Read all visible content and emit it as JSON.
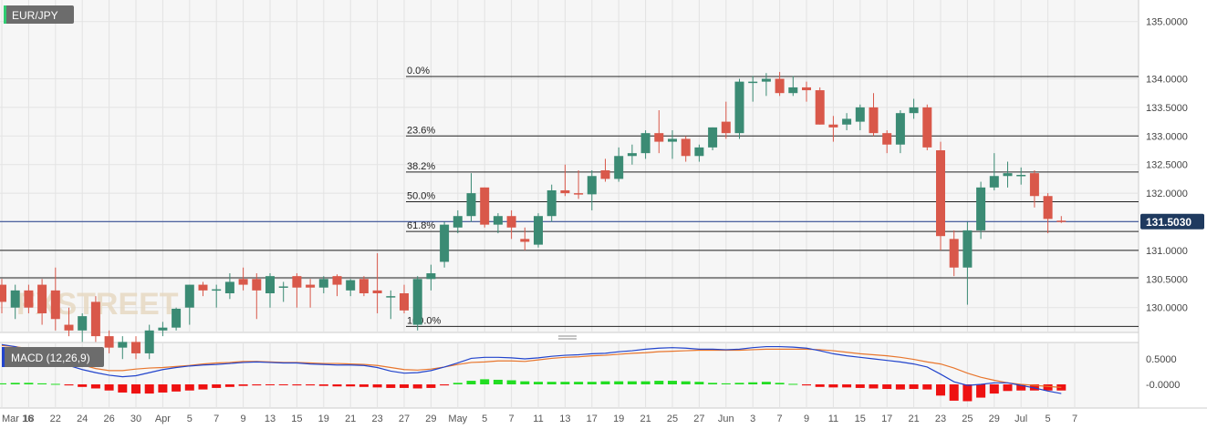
{
  "chart_data": {
    "type": "candlestick",
    "title": "EUR/JPY",
    "price_axis": {
      "ticks": [
        "130.0000",
        "130.5000",
        "131.0000",
        "131.5000",
        "132.0000",
        "132.5000",
        "133.0000",
        "133.5000",
        "134.0000",
        "135.0000"
      ],
      "tick_values": [
        130.0,
        130.5,
        131.0,
        131.5,
        132.0,
        132.5,
        133.0,
        133.5,
        134.0,
        135.0
      ],
      "range": [
        129.6,
        135.3
      ]
    },
    "current_price": {
      "label": "131.5030",
      "value": 131.503
    },
    "fibonacci": [
      {
        "label": "0.0%",
        "value": 134.04
      },
      {
        "label": "23.6%",
        "value": 133.0
      },
      {
        "label": "38.2%",
        "value": 132.37
      },
      {
        "label": "50.0%",
        "value": 131.85
      },
      {
        "label": "61.8%",
        "value": 131.33
      },
      {
        "label": "100.0%",
        "value": 129.67
      }
    ],
    "extra_levels": [
      131.0,
      130.52
    ],
    "date_axis": {
      "labels": [
        "Mar 16",
        "18",
        "22",
        "24",
        "26",
        "30",
        "Apr",
        "5",
        "7",
        "9",
        "13",
        "15",
        "19",
        "21",
        "23",
        "27",
        "29",
        "May",
        "5",
        "7",
        "11",
        "13",
        "17",
        "19",
        "21",
        "25",
        "27",
        "Jun",
        "3",
        "7",
        "9",
        "11",
        "15",
        "17",
        "21",
        "23",
        "25",
        "29",
        "Jul",
        "5",
        "7"
      ]
    },
    "candles": [
      {
        "o": 130.4,
        "h": 130.5,
        "l": 129.9,
        "c": 130.1
      },
      {
        "o": 130.0,
        "h": 130.4,
        "l": 129.8,
        "c": 130.3
      },
      {
        "o": 130.3,
        "h": 130.4,
        "l": 129.9,
        "c": 130.0
      },
      {
        "o": 130.4,
        "h": 130.5,
        "l": 129.7,
        "c": 129.9
      },
      {
        "o": 130.3,
        "h": 130.7,
        "l": 129.6,
        "c": 129.8
      },
      {
        "o": 129.7,
        "h": 130.0,
        "l": 129.5,
        "c": 129.6
      },
      {
        "o": 129.6,
        "h": 129.9,
        "l": 129.4,
        "c": 129.85
      },
      {
        "o": 130.1,
        "h": 130.2,
        "l": 129.4,
        "c": 129.5
      },
      {
        "o": 129.5,
        "h": 129.6,
        "l": 129.2,
        "c": 129.3
      },
      {
        "o": 129.3,
        "h": 129.5,
        "l": 129.1,
        "c": 129.4
      },
      {
        "o": 129.4,
        "h": 129.5,
        "l": 129.1,
        "c": 129.2
      },
      {
        "o": 129.2,
        "h": 129.7,
        "l": 129.1,
        "c": 129.6
      },
      {
        "o": 129.6,
        "h": 129.75,
        "l": 129.5,
        "c": 129.65
      },
      {
        "o": 129.65,
        "h": 130.0,
        "l": 129.6,
        "c": 129.98
      },
      {
        "o": 130.0,
        "h": 130.4,
        "l": 129.7,
        "c": 130.4
      },
      {
        "o": 130.4,
        "h": 130.45,
        "l": 130.2,
        "c": 130.3
      },
      {
        "o": 130.3,
        "h": 130.4,
        "l": 130.0,
        "c": 130.32
      },
      {
        "o": 130.25,
        "h": 130.6,
        "l": 130.15,
        "c": 130.45
      },
      {
        "o": 130.5,
        "h": 130.7,
        "l": 130.3,
        "c": 130.4
      },
      {
        "o": 130.5,
        "h": 130.6,
        "l": 129.8,
        "c": 130.3
      },
      {
        "o": 130.25,
        "h": 130.6,
        "l": 130.0,
        "c": 130.55
      },
      {
        "o": 130.35,
        "h": 130.45,
        "l": 130.1,
        "c": 130.37
      },
      {
        "o": 130.55,
        "h": 130.6,
        "l": 130.0,
        "c": 130.35
      },
      {
        "o": 130.4,
        "h": 130.5,
        "l": 130.0,
        "c": 130.35
      },
      {
        "o": 130.35,
        "h": 130.55,
        "l": 130.25,
        "c": 130.5
      },
      {
        "o": 130.55,
        "h": 130.58,
        "l": 130.2,
        "c": 130.4
      },
      {
        "o": 130.3,
        "h": 130.5,
        "l": 130.2,
        "c": 130.48
      },
      {
        "o": 130.5,
        "h": 130.55,
        "l": 130.2,
        "c": 130.25
      },
      {
        "o": 130.3,
        "h": 130.95,
        "l": 129.9,
        "c": 130.25
      },
      {
        "o": 130.2,
        "h": 130.3,
        "l": 129.8,
        "c": 130.2
      },
      {
        "o": 130.25,
        "h": 130.4,
        "l": 129.9,
        "c": 129.95
      },
      {
        "o": 129.7,
        "h": 130.55,
        "l": 129.6,
        "c": 130.5
      },
      {
        "o": 130.5,
        "h": 130.75,
        "l": 130.3,
        "c": 130.6
      },
      {
        "o": 130.8,
        "h": 131.5,
        "l": 130.7,
        "c": 131.45
      },
      {
        "o": 131.4,
        "h": 131.7,
        "l": 131.3,
        "c": 131.6
      },
      {
        "o": 131.6,
        "h": 132.35,
        "l": 131.5,
        "c": 132.0
      },
      {
        "o": 132.1,
        "h": 132.1,
        "l": 131.4,
        "c": 131.45
      },
      {
        "o": 131.45,
        "h": 131.65,
        "l": 131.3,
        "c": 131.6
      },
      {
        "o": 131.6,
        "h": 131.7,
        "l": 131.2,
        "c": 131.4
      },
      {
        "o": 131.2,
        "h": 131.4,
        "l": 131.0,
        "c": 131.15
      },
      {
        "o": 131.1,
        "h": 131.65,
        "l": 131.05,
        "c": 131.6
      },
      {
        "o": 131.6,
        "h": 132.15,
        "l": 131.5,
        "c": 132.05
      },
      {
        "o": 132.05,
        "h": 132.5,
        "l": 131.95,
        "c": 132.0
      },
      {
        "o": 132.0,
        "h": 132.4,
        "l": 131.9,
        "c": 131.98
      },
      {
        "o": 131.98,
        "h": 132.4,
        "l": 131.7,
        "c": 132.3
      },
      {
        "o": 132.4,
        "h": 132.6,
        "l": 132.2,
        "c": 132.25
      },
      {
        "o": 132.25,
        "h": 132.8,
        "l": 132.2,
        "c": 132.65
      },
      {
        "o": 132.65,
        "h": 132.85,
        "l": 132.5,
        "c": 132.7
      },
      {
        "o": 132.7,
        "h": 133.1,
        "l": 132.6,
        "c": 133.05
      },
      {
        "o": 133.05,
        "h": 133.45,
        "l": 132.7,
        "c": 132.9
      },
      {
        "o": 132.9,
        "h": 133.1,
        "l": 132.6,
        "c": 132.95
      },
      {
        "o": 132.95,
        "h": 133.0,
        "l": 132.55,
        "c": 132.65
      },
      {
        "o": 132.65,
        "h": 132.85,
        "l": 132.55,
        "c": 132.8
      },
      {
        "o": 132.8,
        "h": 133.15,
        "l": 132.75,
        "c": 133.15
      },
      {
        "o": 133.25,
        "h": 133.6,
        "l": 132.95,
        "c": 133.05
      },
      {
        "o": 133.05,
        "h": 134.0,
        "l": 132.95,
        "c": 133.95
      },
      {
        "o": 133.95,
        "h": 134.05,
        "l": 133.6,
        "c": 133.95
      },
      {
        "o": 133.95,
        "h": 134.1,
        "l": 133.7,
        "c": 134.0
      },
      {
        "o": 134.0,
        "h": 134.12,
        "l": 133.7,
        "c": 133.75
      },
      {
        "o": 133.75,
        "h": 134.05,
        "l": 133.7,
        "c": 133.85
      },
      {
        "o": 133.85,
        "h": 133.95,
        "l": 133.6,
        "c": 133.8
      },
      {
        "o": 133.8,
        "h": 133.85,
        "l": 133.2,
        "c": 133.2
      },
      {
        "o": 133.2,
        "h": 133.35,
        "l": 132.9,
        "c": 133.15
      },
      {
        "o": 133.2,
        "h": 133.4,
        "l": 133.1,
        "c": 133.3
      },
      {
        "o": 133.25,
        "h": 133.55,
        "l": 133.1,
        "c": 133.5
      },
      {
        "o": 133.5,
        "h": 133.75,
        "l": 133.0,
        "c": 133.05
      },
      {
        "o": 133.05,
        "h": 133.1,
        "l": 132.7,
        "c": 132.85
      },
      {
        "o": 132.85,
        "h": 133.45,
        "l": 132.7,
        "c": 133.4
      },
      {
        "o": 133.4,
        "h": 133.65,
        "l": 133.3,
        "c": 133.5
      },
      {
        "o": 133.5,
        "h": 133.55,
        "l": 132.75,
        "c": 132.8
      },
      {
        "o": 132.75,
        "h": 132.9,
        "l": 131.0,
        "c": 131.25
      },
      {
        "o": 131.2,
        "h": 131.35,
        "l": 130.55,
        "c": 130.7
      },
      {
        "o": 130.7,
        "h": 131.5,
        "l": 130.05,
        "c": 131.35
      },
      {
        "o": 131.35,
        "h": 132.2,
        "l": 131.2,
        "c": 132.1
      },
      {
        "o": 132.1,
        "h": 132.7,
        "l": 132.05,
        "c": 132.3
      },
      {
        "o": 132.3,
        "h": 132.55,
        "l": 132.1,
        "c": 132.35
      },
      {
        "o": 132.3,
        "h": 132.45,
        "l": 132.15,
        "c": 132.32
      },
      {
        "o": 132.35,
        "h": 132.4,
        "l": 131.75,
        "c": 131.95
      },
      {
        "o": 131.95,
        "h": 132.0,
        "l": 131.3,
        "c": 131.55
      },
      {
        "o": 131.52,
        "h": 131.6,
        "l": 131.48,
        "c": 131.5
      }
    ],
    "macd": {
      "label": "MACD (12,26,9)",
      "ticks": [
        "0.5000",
        "-0.0000"
      ],
      "tick_values": [
        0.5,
        0.0
      ],
      "range": [
        -0.38,
        0.78
      ],
      "histogram": [
        0.02,
        0.03,
        0.03,
        0.02,
        0.01,
        -0.02,
        -0.05,
        -0.08,
        -0.12,
        -0.16,
        -0.18,
        -0.18,
        -0.16,
        -0.14,
        -0.12,
        -0.1,
        -0.07,
        -0.05,
        -0.03,
        -0.02,
        -0.01,
        -0.01,
        -0.02,
        -0.02,
        -0.03,
        -0.04,
        -0.04,
        -0.05,
        -0.06,
        -0.07,
        -0.07,
        -0.08,
        -0.07,
        -0.02,
        0.03,
        0.07,
        0.1,
        0.09,
        0.08,
        0.06,
        0.05,
        0.05,
        0.05,
        0.05,
        0.05,
        0.06,
        0.06,
        0.06,
        0.06,
        0.07,
        0.07,
        0.06,
        0.05,
        0.03,
        0.02,
        0.03,
        0.04,
        0.05,
        0.03,
        0.01,
        -0.02,
        -0.05,
        -0.06,
        -0.06,
        -0.07,
        -0.08,
        -0.09,
        -0.1,
        -0.09,
        -0.1,
        -0.22,
        -0.32,
        -0.33,
        -0.26,
        -0.18,
        -0.13,
        -0.12,
        -0.12,
        -0.12,
        -0.12
      ],
      "macd_line": [
        0.78,
        0.74,
        0.66,
        0.56,
        0.46,
        0.37,
        0.29,
        0.23,
        0.18,
        0.15,
        0.17,
        0.23,
        0.29,
        0.33,
        0.36,
        0.38,
        0.39,
        0.41,
        0.43,
        0.44,
        0.43,
        0.42,
        0.42,
        0.4,
        0.39,
        0.38,
        0.38,
        0.37,
        0.33,
        0.26,
        0.22,
        0.23,
        0.27,
        0.34,
        0.42,
        0.51,
        0.53,
        0.53,
        0.52,
        0.5,
        0.52,
        0.55,
        0.57,
        0.58,
        0.6,
        0.61,
        0.64,
        0.66,
        0.69,
        0.71,
        0.72,
        0.71,
        0.69,
        0.69,
        0.68,
        0.69,
        0.72,
        0.74,
        0.74,
        0.73,
        0.71,
        0.66,
        0.6,
        0.56,
        0.53,
        0.5,
        0.47,
        0.44,
        0.4,
        0.34,
        0.2,
        0.05,
        -0.02,
        0.0,
        0.03,
        0.03,
        -0.02,
        -0.07,
        -0.13,
        -0.18
      ],
      "signal_line": [
        0.76,
        0.74,
        0.7,
        0.63,
        0.55,
        0.47,
        0.38,
        0.31,
        0.27,
        0.27,
        0.3,
        0.32,
        0.33,
        0.35,
        0.37,
        0.4,
        0.42,
        0.43,
        0.45,
        0.45,
        0.44,
        0.43,
        0.43,
        0.42,
        0.41,
        0.41,
        0.4,
        0.39,
        0.37,
        0.33,
        0.29,
        0.28,
        0.3,
        0.34,
        0.39,
        0.43,
        0.44,
        0.46,
        0.46,
        0.45,
        0.48,
        0.51,
        0.53,
        0.54,
        0.56,
        0.57,
        0.59,
        0.61,
        0.62,
        0.64,
        0.65,
        0.66,
        0.67,
        0.67,
        0.67,
        0.67,
        0.68,
        0.69,
        0.69,
        0.69,
        0.69,
        0.68,
        0.66,
        0.63,
        0.6,
        0.58,
        0.56,
        0.53,
        0.49,
        0.44,
        0.4,
        0.32,
        0.22,
        0.14,
        0.08,
        0.03,
        0.0,
        -0.02,
        -0.04,
        -0.06
      ]
    }
  },
  "colors": {
    "up": "#3b8b74",
    "down": "#d9584a",
    "macd_line": "#2244cc",
    "signal_line": "#e8762d",
    "hist_up": "#22dd22",
    "hist_down": "#ee1111",
    "current_tag": "#1f3a5f"
  }
}
